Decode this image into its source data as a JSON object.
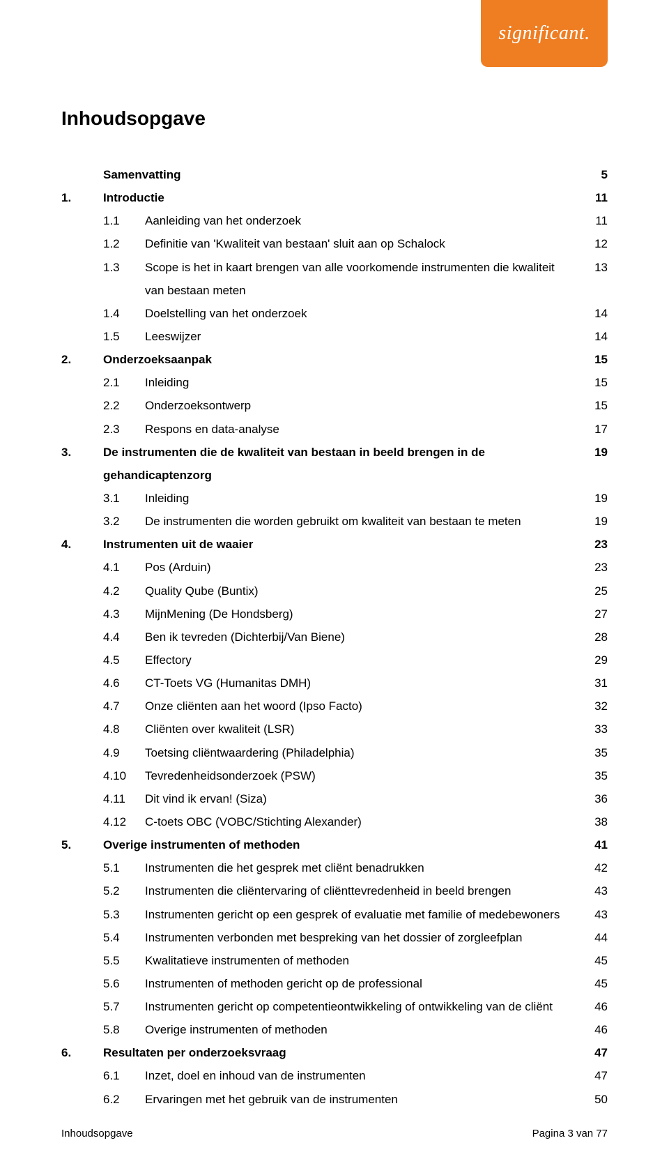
{
  "logo_text": "significant.",
  "title": "Inhoudsopgave",
  "colors": {
    "brand_orange": "#ef7d22",
    "text": "#000000",
    "background": "#ffffff"
  },
  "toc": [
    {
      "num": "",
      "label": "Samenvatting",
      "page": "5",
      "level": 0,
      "bold": true
    },
    {
      "num": "1.",
      "label": "Introductie",
      "page": "11",
      "level": 0,
      "bold": true
    },
    {
      "num": "1.1",
      "label": "Aanleiding van het onderzoek",
      "page": "11",
      "level": 1,
      "bold": false
    },
    {
      "num": "1.2",
      "label": "Definitie van 'Kwaliteit van bestaan' sluit aan op Schalock",
      "page": "12",
      "level": 1,
      "bold": false
    },
    {
      "num": "1.3",
      "label": "Scope is het in kaart brengen van alle voorkomende instrumenten die kwaliteit van bestaan meten",
      "page": "13",
      "level": 1,
      "bold": false
    },
    {
      "num": "1.4",
      "label": "Doelstelling van het onderzoek",
      "page": "14",
      "level": 1,
      "bold": false
    },
    {
      "num": "1.5",
      "label": "Leeswijzer",
      "page": "14",
      "level": 1,
      "bold": false
    },
    {
      "num": "2.",
      "label": "Onderzoeksaanpak",
      "page": "15",
      "level": 0,
      "bold": true
    },
    {
      "num": "2.1",
      "label": "Inleiding",
      "page": "15",
      "level": 1,
      "bold": false
    },
    {
      "num": "2.2",
      "label": "Onderzoeksontwerp",
      "page": "15",
      "level": 1,
      "bold": false
    },
    {
      "num": "2.3",
      "label": "Respons en data-analyse",
      "page": "17",
      "level": 1,
      "bold": false
    },
    {
      "num": "3.",
      "label": "De instrumenten die de kwaliteit van bestaan in beeld brengen in de gehandicaptenzorg",
      "page": "19",
      "level": 0,
      "bold": true
    },
    {
      "num": "3.1",
      "label": "Inleiding",
      "page": "19",
      "level": 1,
      "bold": false
    },
    {
      "num": "3.2",
      "label": "De instrumenten die worden gebruikt om kwaliteit van bestaan te meten",
      "page": "19",
      "level": 1,
      "bold": false
    },
    {
      "num": "4.",
      "label": "Instrumenten uit de waaier",
      "page": "23",
      "level": 0,
      "bold": true
    },
    {
      "num": "4.1",
      "label": "Pos (Arduin)",
      "page": "23",
      "level": 1,
      "bold": false
    },
    {
      "num": "4.2",
      "label": "Quality Qube (Buntix)",
      "page": "25",
      "level": 1,
      "bold": false
    },
    {
      "num": "4.3",
      "label": "MijnMening (De Hondsberg)",
      "page": "27",
      "level": 1,
      "bold": false
    },
    {
      "num": "4.4",
      "label": "Ben ik tevreden (Dichterbij/Van Biene)",
      "page": "28",
      "level": 1,
      "bold": false
    },
    {
      "num": "4.5",
      "label": "Effectory",
      "page": "29",
      "level": 1,
      "bold": false
    },
    {
      "num": "4.6",
      "label": "CT-Toets VG (Humanitas DMH)",
      "page": "31",
      "level": 1,
      "bold": false
    },
    {
      "num": "4.7",
      "label": "Onze cliënten aan het woord (Ipso Facto)",
      "page": "32",
      "level": 1,
      "bold": false
    },
    {
      "num": "4.8",
      "label": "Cliënten over kwaliteit (LSR)",
      "page": "33",
      "level": 1,
      "bold": false
    },
    {
      "num": "4.9",
      "label": "Toetsing cliëntwaardering (Philadelphia)",
      "page": "35",
      "level": 1,
      "bold": false
    },
    {
      "num": "4.10",
      "label": "Tevredenheidsonderzoek (PSW)",
      "page": "35",
      "level": 1,
      "bold": false
    },
    {
      "num": "4.11",
      "label": "Dit vind ik ervan! (Siza)",
      "page": "36",
      "level": 1,
      "bold": false
    },
    {
      "num": "4.12",
      "label": "C-toets OBC (VOBC/Stichting Alexander)",
      "page": "38",
      "level": 1,
      "bold": false
    },
    {
      "num": "5.",
      "label": "Overige instrumenten of methoden",
      "page": "41",
      "level": 0,
      "bold": true
    },
    {
      "num": "5.1",
      "label": "Instrumenten die het gesprek met cliënt benadrukken",
      "page": "42",
      "level": 1,
      "bold": false
    },
    {
      "num": "5.2",
      "label": "Instrumenten die cliëntervaring of cliënttevredenheid in beeld brengen",
      "page": "43",
      "level": 1,
      "bold": false
    },
    {
      "num": "5.3",
      "label": "Instrumenten gericht op een gesprek of evaluatie met familie of medebewoners",
      "page": "43",
      "level": 1,
      "bold": false
    },
    {
      "num": "5.4",
      "label": "Instrumenten verbonden met bespreking van het dossier of zorgleefplan",
      "page": "44",
      "level": 1,
      "bold": false
    },
    {
      "num": "5.5",
      "label": "Kwalitatieve instrumenten of methoden",
      "page": "45",
      "level": 1,
      "bold": false
    },
    {
      "num": "5.6",
      "label": "Instrumenten of methoden gericht op de professional",
      "page": "45",
      "level": 1,
      "bold": false
    },
    {
      "num": "5.7",
      "label": "Instrumenten gericht op competentieontwikkeling of ontwikkeling van de cliënt",
      "page": "46",
      "level": 1,
      "bold": false
    },
    {
      "num": "5.8",
      "label": "Overige instrumenten of methoden",
      "page": "46",
      "level": 1,
      "bold": false
    },
    {
      "num": "6.",
      "label": "Resultaten per onderzoeksvraag",
      "page": "47",
      "level": 0,
      "bold": true
    },
    {
      "num": "6.1",
      "label": "Inzet, doel en inhoud van de instrumenten",
      "page": "47",
      "level": 1,
      "bold": false
    },
    {
      "num": "6.2",
      "label": "Ervaringen met het gebruik van de instrumenten",
      "page": "50",
      "level": 1,
      "bold": false
    }
  ],
  "footer": {
    "left": "Inhoudsopgave",
    "right": "Pagina 3 van 77"
  }
}
